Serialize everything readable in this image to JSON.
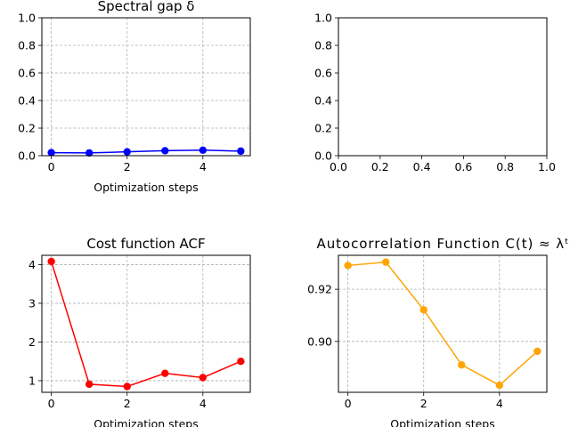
{
  "chart_data": [
    {
      "type": "line",
      "title": "Spectral gap δ",
      "xlabel": "Optimization steps",
      "ylabel": "",
      "x": [
        0,
        1,
        2,
        3,
        4,
        5
      ],
      "series": [
        {
          "values": [
            0.022,
            0.02,
            0.028,
            0.036,
            0.04,
            0.033
          ],
          "color": "#0000ff"
        }
      ],
      "xlim": [
        -0.25,
        5.25
      ],
      "ylim": [
        0.0,
        1.0
      ],
      "xticks": [
        0,
        2,
        4
      ],
      "yticks": [
        0.0,
        0.2,
        0.4,
        0.6,
        0.8,
        1.0
      ],
      "grid": true
    },
    {
      "type": "line",
      "title": "",
      "xlabel": "",
      "ylabel": "",
      "x": [],
      "series": [],
      "xlim": [
        0.0,
        1.0
      ],
      "ylim": [
        0.0,
        1.0
      ],
      "xticks": [
        0.0,
        0.2,
        0.4,
        0.6,
        0.8,
        1.0
      ],
      "yticks": [
        0.0,
        0.2,
        0.4,
        0.6,
        0.8,
        1.0
      ],
      "grid": false
    },
    {
      "type": "line",
      "title": "Cost function ACF",
      "xlabel": "Optimization steps",
      "ylabel": "",
      "x": [
        0,
        1,
        2,
        3,
        4,
        5
      ],
      "series": [
        {
          "values": [
            4.08,
            0.91,
            0.85,
            1.19,
            1.08,
            1.5
          ],
          "color": "#ff0000"
        }
      ],
      "xlim": [
        -0.25,
        5.25
      ],
      "ylim": [
        0.7,
        4.24
      ],
      "xticks": [
        0,
        2,
        4
      ],
      "yticks": [
        1,
        2,
        3,
        4
      ],
      "grid": true
    },
    {
      "type": "line",
      "title": "Autocorrelation Function C(t) ≈ λᵗ",
      "xlabel": "Optimization steps",
      "ylabel": "",
      "x": [
        0,
        1,
        2,
        3,
        4,
        5
      ],
      "series": [
        {
          "values": [
            0.9291,
            0.9304,
            0.9121,
            0.891,
            0.8832,
            0.8962
          ],
          "color": "#ffa500"
        }
      ],
      "xlim": [
        -0.25,
        5.25
      ],
      "ylim": [
        0.8805,
        0.933
      ],
      "xticks": [
        0,
        2,
        4
      ],
      "yticks": [
        0.9,
        0.92
      ],
      "grid": true
    }
  ]
}
